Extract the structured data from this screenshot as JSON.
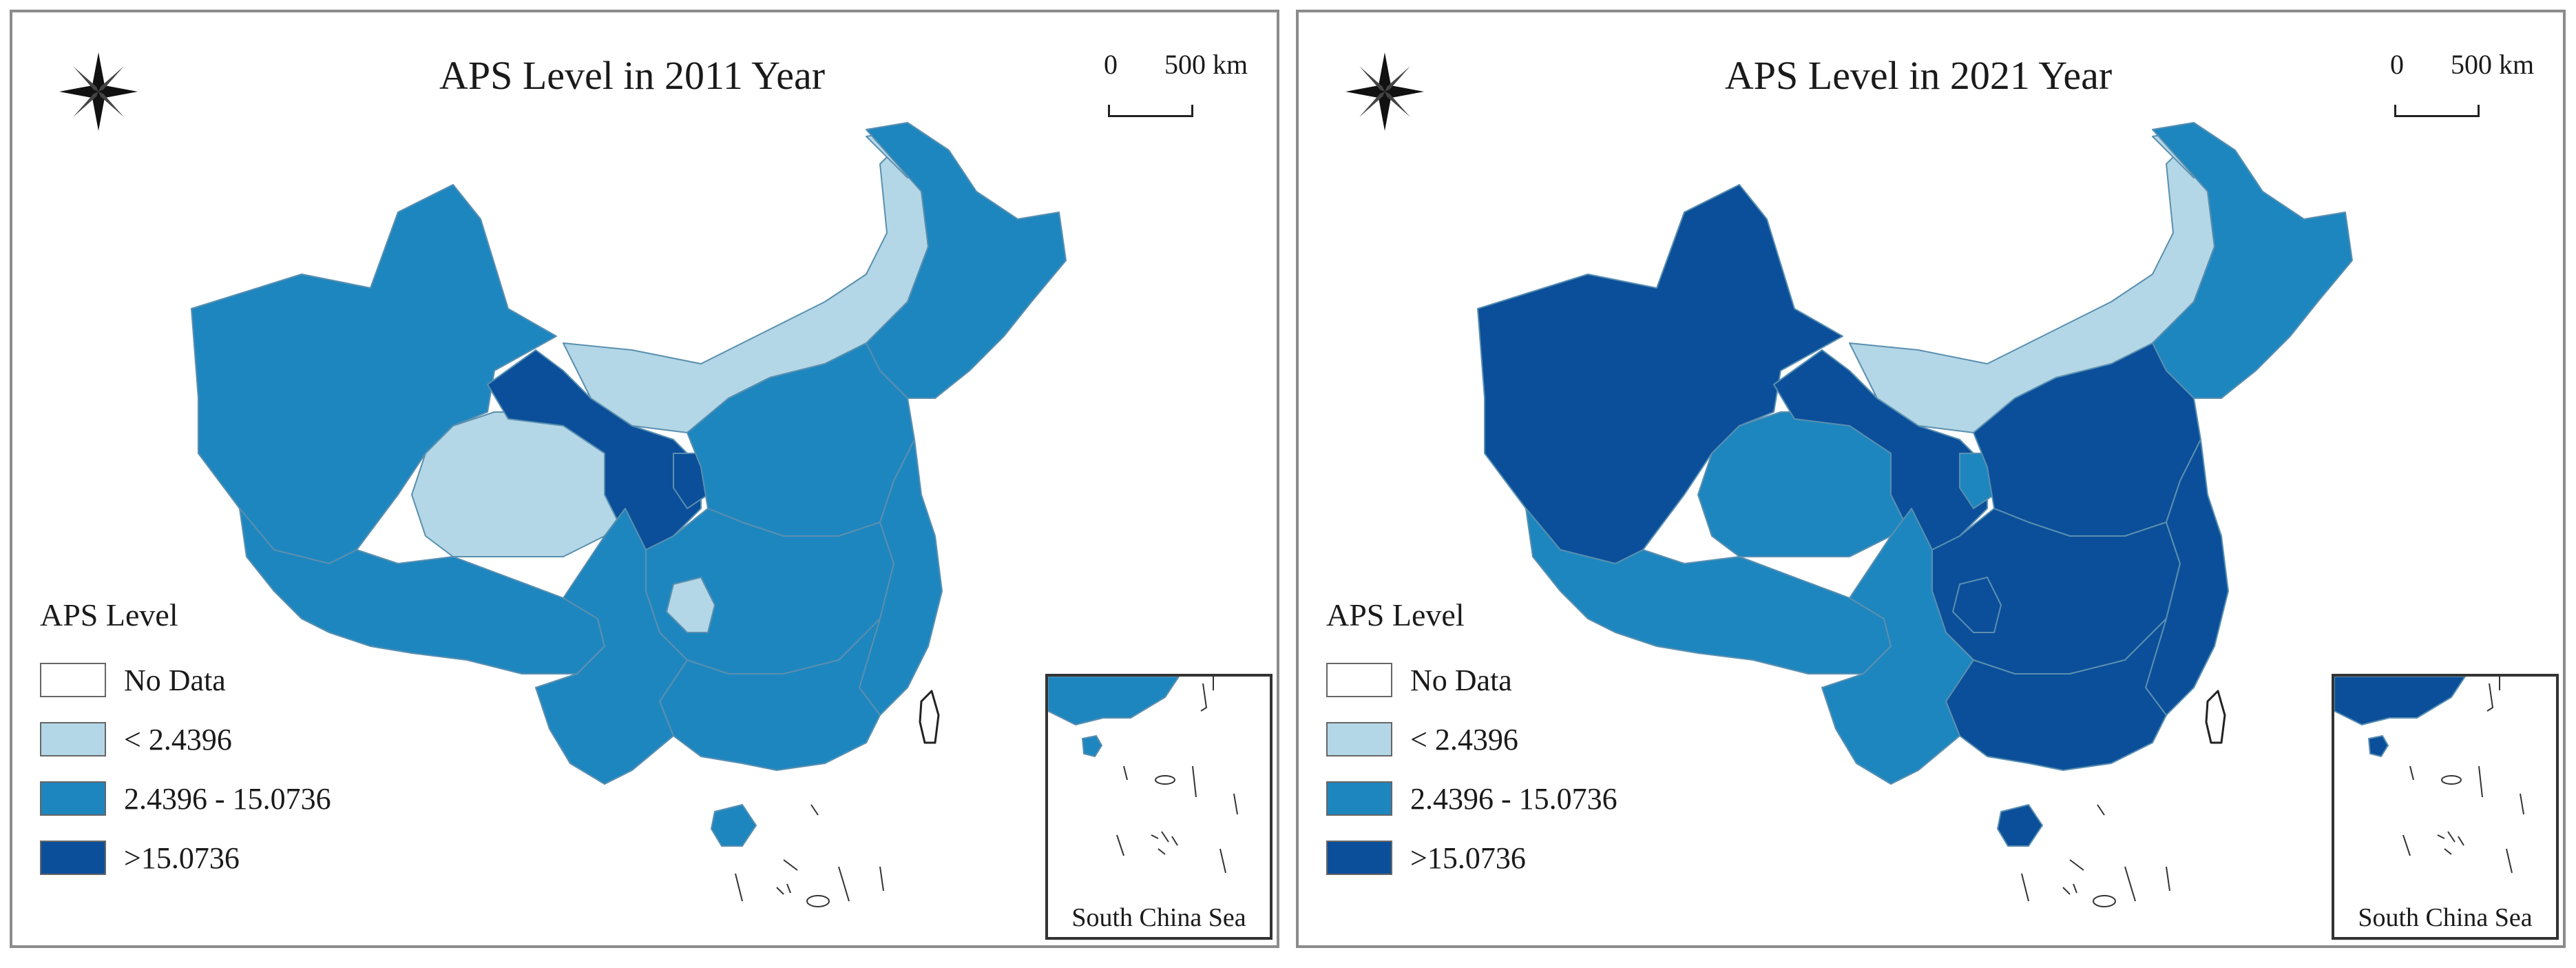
{
  "colors": {
    "no_data": "#ffffff",
    "low": "#b3d7e6",
    "mid": "#1e86be",
    "high": "#0b4f9a",
    "border": "#8c8c8c"
  },
  "maps": [
    {
      "title": "APS Level in 2011 Year",
      "regions": {
        "northwest": "mid",
        "tibet": "mid",
        "qinghai": "low",
        "gansu_strip": "high",
        "ningxia": "high",
        "inner_mongolia": "low",
        "northeast": "mid",
        "heilongjiang_north": "low",
        "north_china": "mid",
        "central": "mid",
        "east_coast": "mid",
        "south": "mid",
        "sichuan_yunnan": "mid",
        "chongqing": "low",
        "hainan": "mid",
        "taiwan": "no_data"
      }
    },
    {
      "title": "APS Level in 2021 Year",
      "regions": {
        "northwest": "high",
        "tibet": "mid",
        "qinghai": "mid",
        "gansu_strip": "high",
        "ningxia": "mid",
        "inner_mongolia": "low",
        "northeast": "mid",
        "heilongjiang_north": "low",
        "north_china": "high",
        "central": "high",
        "east_coast": "high",
        "south": "high",
        "sichuan_yunnan": "mid",
        "chongqing": "high",
        "hainan": "high",
        "taiwan": "no_data"
      }
    }
  ],
  "scale": {
    "zero": "0",
    "km": "500 km"
  },
  "compass_icon": "north-arrow-compass-icon",
  "legend": {
    "title": "APS Level",
    "items": [
      {
        "label": "No Data",
        "color": "#ffffff"
      },
      {
        "label": "< 2.4396",
        "color": "#b3d7e6"
      },
      {
        "label": "2.4396 - 15.0736",
        "color": "#1e86be"
      },
      {
        "label": ">15.0736",
        "color": "#0b4f9a"
      }
    ]
  },
  "inset": {
    "label": "South China Sea"
  }
}
